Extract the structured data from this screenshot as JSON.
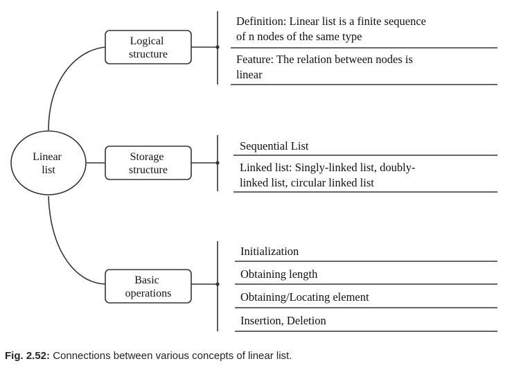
{
  "diagram": {
    "root": {
      "lines": [
        "Linear",
        "list"
      ]
    },
    "branches": [
      {
        "label": [
          "Logical",
          "structure"
        ],
        "items": [
          [
            "Definition: Linear list is a finite sequence",
            "of n nodes of the same type"
          ],
          [
            "Feature: The relation between nodes is",
            "linear"
          ]
        ]
      },
      {
        "label": [
          "Storage",
          "structure"
        ],
        "items": [
          [
            "Sequential List"
          ],
          [
            "Linked list: Singly-linked list, doubly-",
            "linked list, circular linked list"
          ]
        ]
      },
      {
        "label": [
          "Basic",
          "operations"
        ],
        "items": [
          [
            "Initialization"
          ],
          [
            "Obtaining length"
          ],
          [
            "Obtaining/Locating element"
          ],
          [
            "Insertion, Deletion"
          ]
        ]
      }
    ]
  },
  "caption": {
    "label": "Fig. 2.52:",
    "text": " Connections between various concepts of linear list."
  },
  "colors": {
    "stroke": "#333333",
    "text": "#111111",
    "background": "#ffffff"
  }
}
